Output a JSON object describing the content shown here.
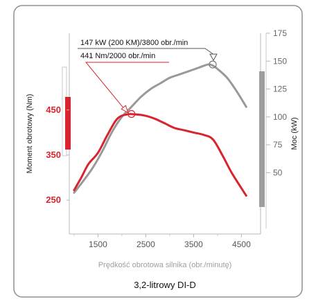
{
  "chart_data": {
    "type": "line",
    "caption": "3,2-litrowy DI-D",
    "xlabel": "Prędkość obrotowa silnika (obr./minutę)",
    "ylabel_left": "Moment obrotowy (Nm)",
    "ylabel_right": "Moc (kW)",
    "xlim": [
      900,
      4900
    ],
    "x_ticks": [
      1500,
      2500,
      3500,
      4500
    ],
    "left_ticks": [
      250,
      350,
      450
    ],
    "left_range": [
      175,
      620
    ],
    "right_ticks": [
      50,
      75,
      100,
      125,
      150,
      175
    ],
    "right_range": [
      -5,
      175
    ],
    "grid": false,
    "annotations": [
      {
        "text": "147 kW (200 KM)/3800 obr./min",
        "series": "power",
        "x": 3900,
        "y": 147
      },
      {
        "text": "441 Nm/2000 obr./min",
        "series": "torque",
        "x": 2200,
        "y": 441
      }
    ],
    "series": [
      {
        "key": "torque",
        "axis": "left",
        "color": "#d9232e",
        "x": [
          1000,
          1150,
          1300,
          1500,
          1700,
          1900,
          2100,
          2300,
          2500,
          2700,
          2900,
          3100,
          3300,
          3500,
          3700,
          3900,
          4100,
          4300,
          4600
        ],
        "y": [
          272,
          300,
          330,
          355,
          395,
          430,
          440,
          440,
          437,
          430,
          420,
          410,
          405,
          400,
          395,
          385,
          350,
          310,
          260
        ]
      },
      {
        "key": "power",
        "axis": "right",
        "color": "#999999",
        "x": [
          1000,
          1200,
          1400,
          1600,
          1800,
          2000,
          2200,
          2400,
          2600,
          2800,
          3000,
          3200,
          3400,
          3600,
          3800,
          3900,
          4000,
          4200,
          4400,
          4600
        ],
        "y": [
          32,
          43,
          55,
          70,
          87,
          100,
          109,
          118,
          125,
          130,
          135,
          138,
          141,
          144,
          147,
          146,
          143,
          135,
          123,
          109
        ]
      }
    ]
  }
}
